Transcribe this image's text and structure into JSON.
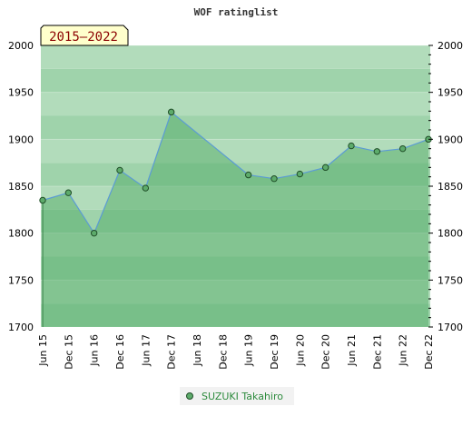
{
  "chart_data": {
    "type": "area",
    "title": "WOF ratinglist",
    "badge": "2015–2022",
    "x_categories": [
      "Jun 15",
      "Dec 15",
      "Jun 16",
      "Dec 16",
      "Jun 17",
      "Dec 17",
      "Jun 18",
      "Dec 18",
      "Jun 19",
      "Dec 19",
      "Jun 20",
      "Dec 20",
      "Jun 21",
      "Dec 21",
      "Jun 22",
      "Dec 22"
    ],
    "ylim": [
      1700,
      2000
    ],
    "y_ticks": [
      1700,
      1750,
      1800,
      1850,
      1900,
      1950,
      2000
    ],
    "series": [
      {
        "name": "SUZUKI Takahiro",
        "points": [
          {
            "x": "Jun 15",
            "y": 1835
          },
          {
            "x": "Dec 15",
            "y": 1843
          },
          {
            "x": "Jun 16",
            "y": 1800
          },
          {
            "x": "Dec 16",
            "y": 1867
          },
          {
            "x": "Jun 17",
            "y": 1848
          },
          {
            "x": "Dec 17",
            "y": 1929
          },
          {
            "x": "Jun 19",
            "y": 1862
          },
          {
            "x": "Dec 19",
            "y": 1858
          },
          {
            "x": "Jun 20",
            "y": 1863
          },
          {
            "x": "Dec 20",
            "y": 1870
          },
          {
            "x": "Jun 21",
            "y": 1893
          },
          {
            "x": "Dec 21",
            "y": 1887
          },
          {
            "x": "Jun 22",
            "y": 1890
          },
          {
            "x": "Dec 22",
            "y": 1900
          }
        ]
      }
    ],
    "grid": true,
    "legend_position": "bottom-center",
    "colors": {
      "line": "#5b9bd5",
      "area": "#4aa660",
      "marker": "#5dab6b",
      "marker_stroke": "#1f4d27",
      "badge_bg": "#ffffcc",
      "legend_text": "#2e8b3e"
    }
  }
}
